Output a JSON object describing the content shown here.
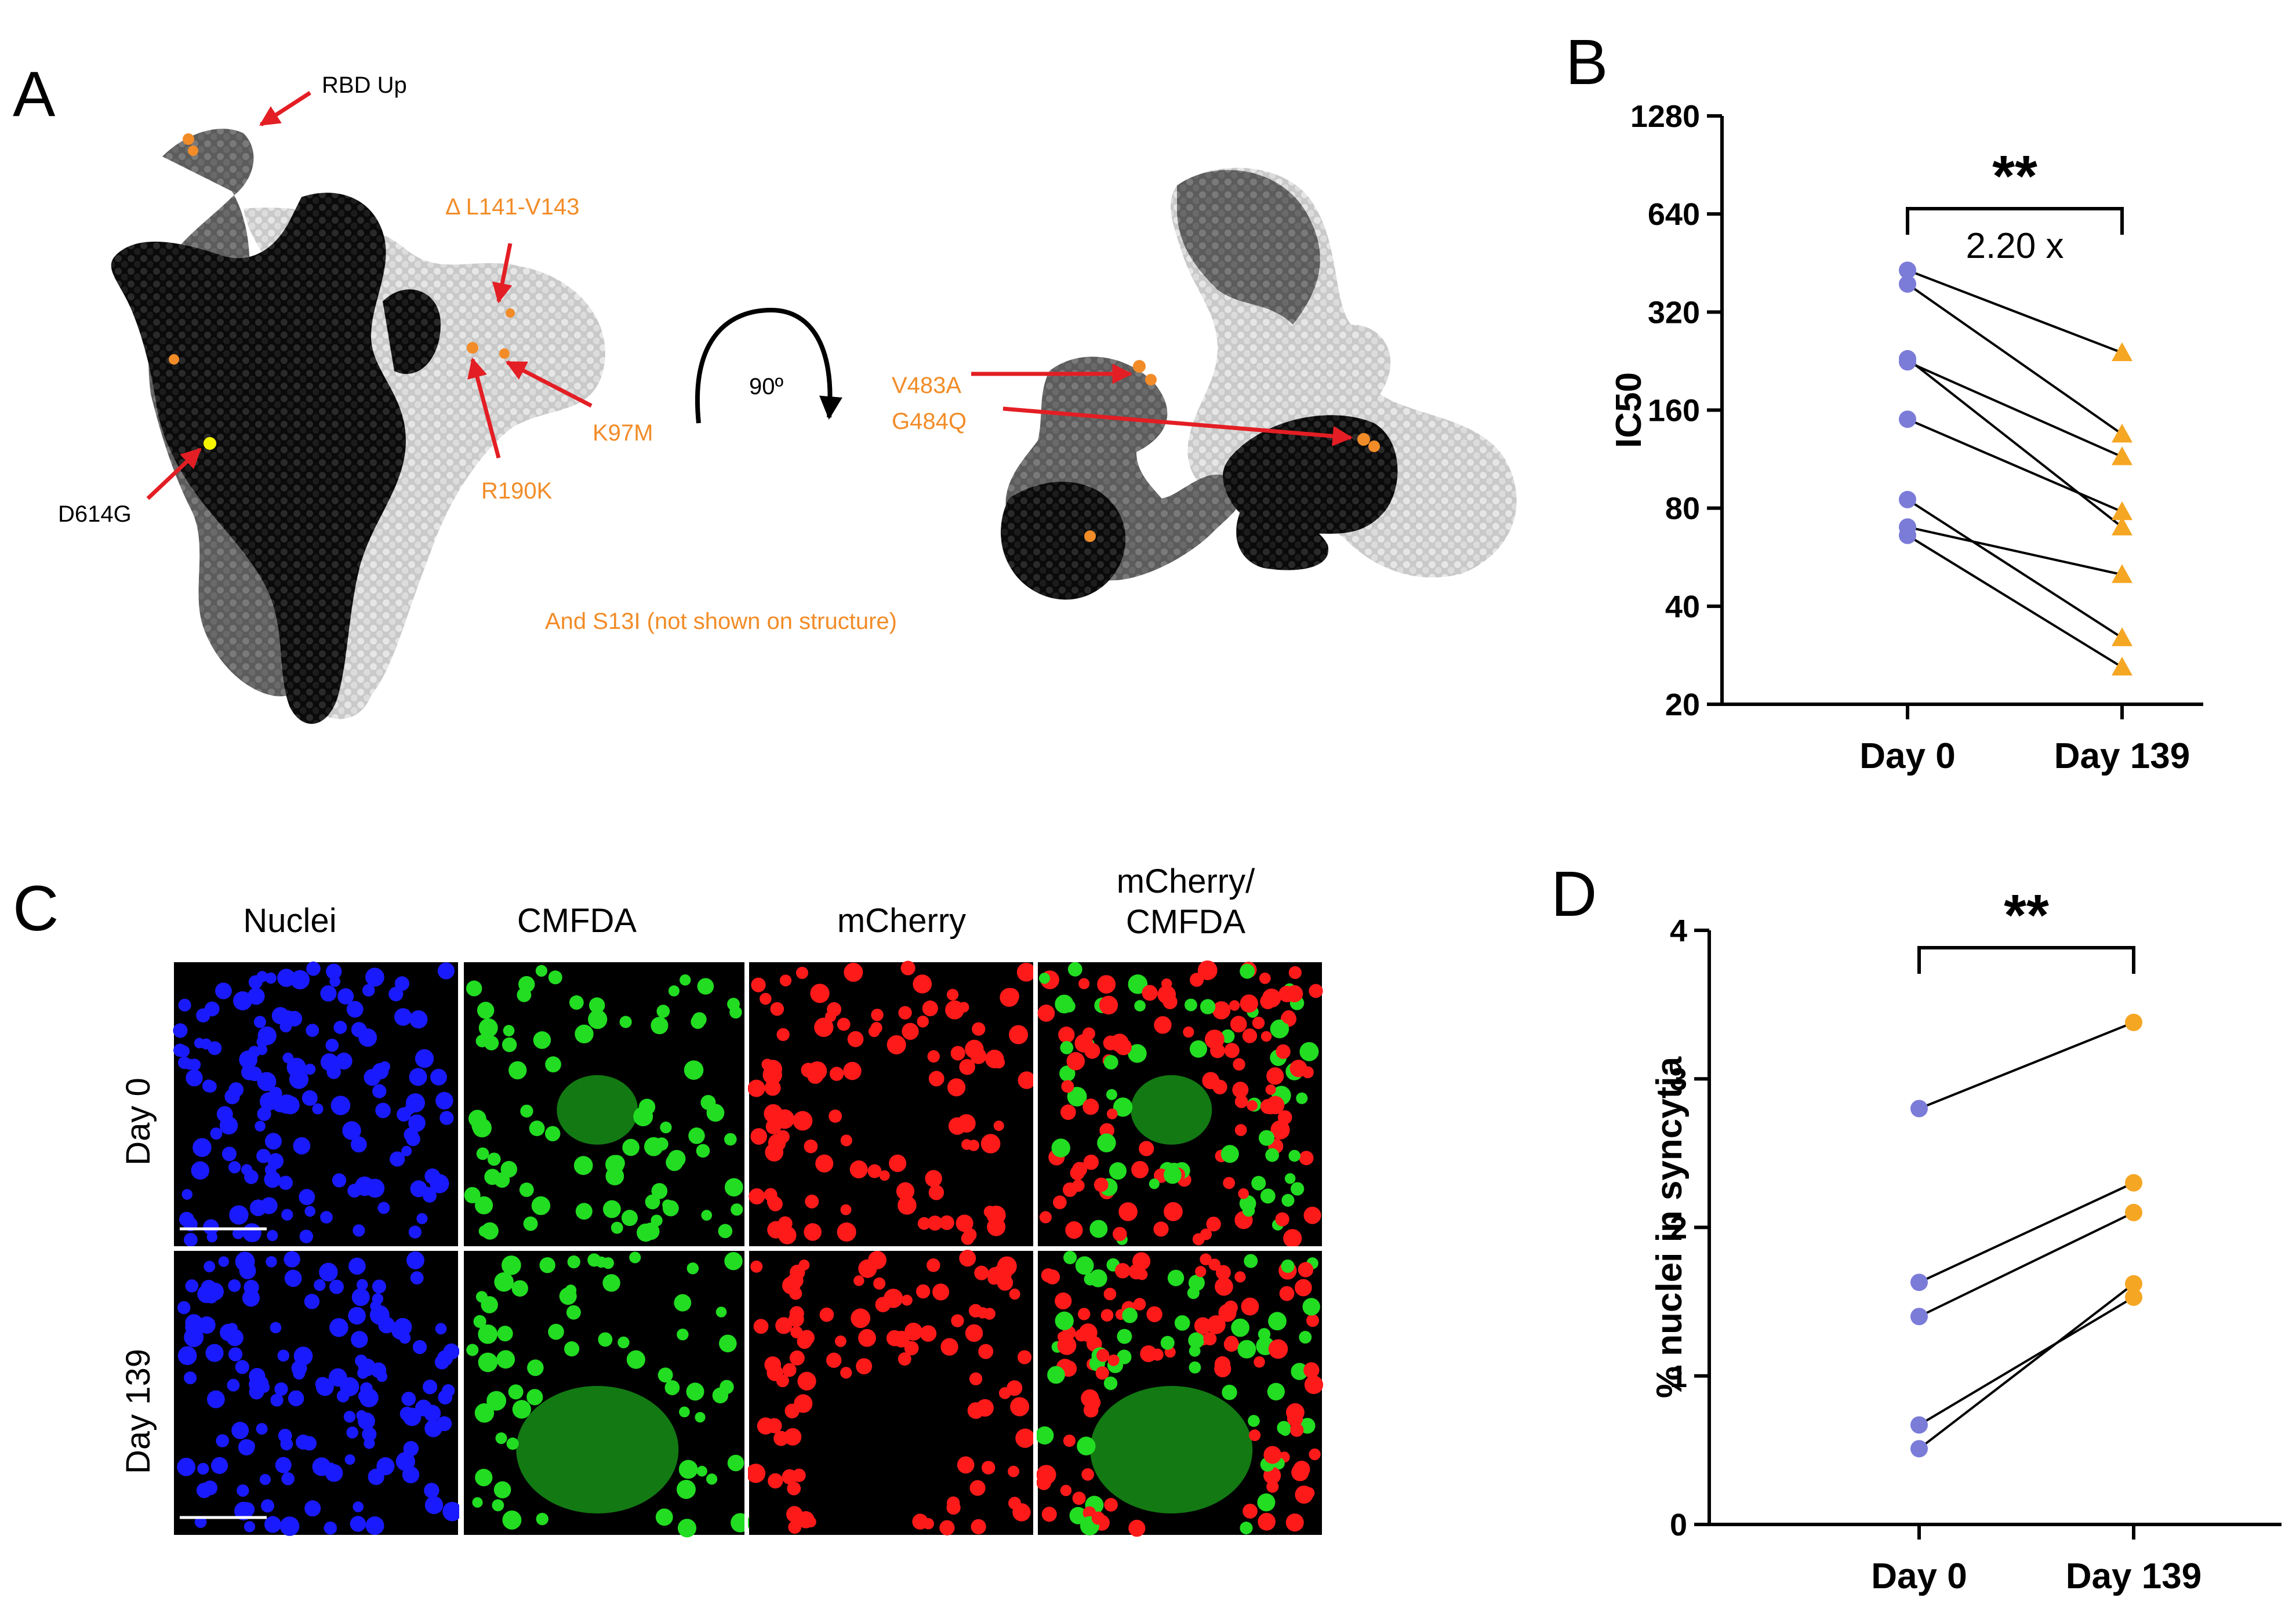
{
  "panel_labels": {
    "a": "A",
    "b": "B",
    "c": "C",
    "d": "D"
  },
  "panel_a": {
    "annotations": {
      "rbd_up": "RBD Up",
      "del_l141": "Δ L141-V143",
      "r190k": "R190K",
      "k97m": "K97M",
      "d614g": "D614G",
      "rotation": "90º",
      "v483a": "V483A",
      "g484q": "G484Q",
      "s13i": "And S13I (not shown on structure)"
    },
    "colors": {
      "mutation": "#f28c28",
      "arrow": "#e31e24",
      "d614g_site": "#f5f500"
    }
  },
  "panel_c": {
    "column_headers": [
      "Nuclei",
      "CMFDA",
      "mCherry",
      "mCherry/",
      "CMFDA"
    ],
    "row_labels": [
      "Day 0",
      "Day 139"
    ],
    "channel_colors": {
      "nuclei": "#1a1aff",
      "cmfda": "#22dd22",
      "mcherry": "#ff1a1a"
    }
  },
  "chart_data": [
    {
      "type": "scatter",
      "panel": "B",
      "ylabel": "IC50",
      "y_scale": "log2",
      "yticks": [
        20,
        40,
        80,
        160,
        320,
        640,
        1280
      ],
      "ylim": [
        20,
        1280
      ],
      "categories": [
        "Day 0",
        "Day 139"
      ],
      "pairs": [
        [
          430,
          240
        ],
        [
          390,
          135
        ],
        [
          230,
          70
        ],
        [
          225,
          115
        ],
        [
          150,
          78
        ],
        [
          85,
          32
        ],
        [
          70,
          50
        ],
        [
          66,
          26
        ]
      ],
      "significance": "**",
      "fold_change": "2.20 x",
      "colors": {
        "day0": "#7b7bd8",
        "day139": "#f5a623",
        "line": "#000000"
      }
    },
    {
      "type": "scatter",
      "panel": "D",
      "ylabel": "% nuclei in syncytia",
      "yticks": [
        0,
        1,
        2,
        3,
        4
      ],
      "ylim": [
        0,
        4
      ],
      "categories": [
        "Day 0",
        "Day 139"
      ],
      "pairs": [
        [
          2.8,
          3.38
        ],
        [
          1.63,
          2.3
        ],
        [
          1.4,
          2.1
        ],
        [
          0.67,
          1.53
        ],
        [
          0.51,
          1.62
        ]
      ],
      "significance": "**",
      "colors": {
        "day0": "#7b7bd8",
        "day139": "#f5a623",
        "line": "#000000"
      }
    }
  ]
}
